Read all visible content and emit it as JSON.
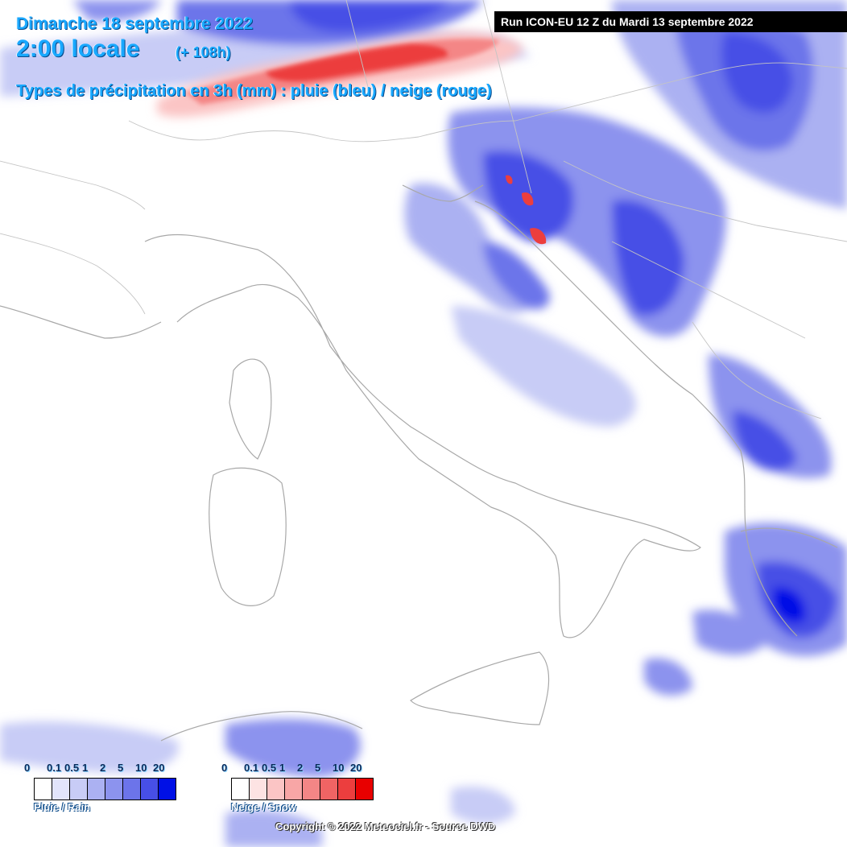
{
  "header": {
    "date": "Dimanche 18 septembre 2022",
    "time": "2:00 locale",
    "lead": "(+ 108h)",
    "precip_types": "Types de précipitation en 3h (mm) : pluie (bleu) / neige (rouge)"
  },
  "run_info": "Run ICON-EU 12 Z du Mardi 13 septembre 2022",
  "legend": {
    "rain": {
      "label": "Pluie / Rain",
      "ticks": [
        "0",
        "0.1",
        "0.5",
        "1",
        "2",
        "5",
        "10",
        "20"
      ],
      "colors": [
        "#ffffff",
        "#e2e4fb",
        "#c8ccf6",
        "#abb1f2",
        "#8c93ee",
        "#6c74ea",
        "#474fe6",
        "#0010e6"
      ]
    },
    "snow": {
      "label": "Neige / Snow",
      "ticks": [
        "0",
        "0.1",
        "0.5",
        "1",
        "2",
        "5",
        "10",
        "20"
      ],
      "colors": [
        "#ffffff",
        "#fde3e3",
        "#fbc5c5",
        "#f8a6a6",
        "#f48686",
        "#f06464",
        "#ec3e3e",
        "#e80000"
      ]
    }
  },
  "copyright": "Copyright © 2022 Meteociel.fr - Source DWD",
  "colors": {
    "header_text": "#19a8ff",
    "rain": "#474fe6",
    "snow": "#ec3e3e"
  }
}
